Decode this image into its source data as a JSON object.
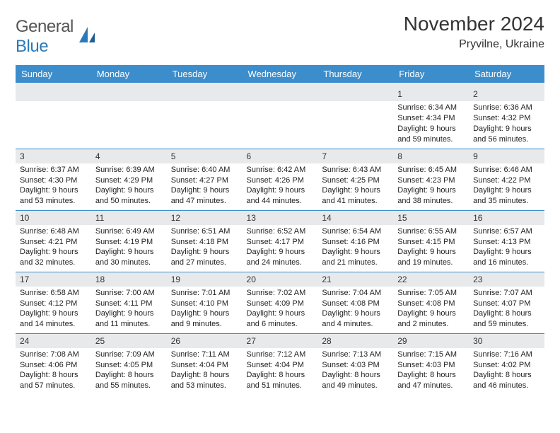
{
  "logo": {
    "word1": "General",
    "word2": "Blue"
  },
  "title": "November 2024",
  "location": "Pryvilne, Ukraine",
  "colors": {
    "header_bg": "#3c8dcc",
    "header_text": "#ffffff",
    "daynum_bg": "#e7e9eb",
    "border": "#3c8dcc",
    "logo_blue": "#2a7ab9",
    "body_text": "#222222"
  },
  "daysOfWeek": [
    "Sunday",
    "Monday",
    "Tuesday",
    "Wednesday",
    "Thursday",
    "Friday",
    "Saturday"
  ],
  "weeks": [
    [
      null,
      null,
      null,
      null,
      null,
      {
        "n": "1",
        "sr": "6:34 AM",
        "ss": "4:34 PM",
        "dl": "9 hours and 59 minutes."
      },
      {
        "n": "2",
        "sr": "6:36 AM",
        "ss": "4:32 PM",
        "dl": "9 hours and 56 minutes."
      }
    ],
    [
      {
        "n": "3",
        "sr": "6:37 AM",
        "ss": "4:30 PM",
        "dl": "9 hours and 53 minutes."
      },
      {
        "n": "4",
        "sr": "6:39 AM",
        "ss": "4:29 PM",
        "dl": "9 hours and 50 minutes."
      },
      {
        "n": "5",
        "sr": "6:40 AM",
        "ss": "4:27 PM",
        "dl": "9 hours and 47 minutes."
      },
      {
        "n": "6",
        "sr": "6:42 AM",
        "ss": "4:26 PM",
        "dl": "9 hours and 44 minutes."
      },
      {
        "n": "7",
        "sr": "6:43 AM",
        "ss": "4:25 PM",
        "dl": "9 hours and 41 minutes."
      },
      {
        "n": "8",
        "sr": "6:45 AM",
        "ss": "4:23 PM",
        "dl": "9 hours and 38 minutes."
      },
      {
        "n": "9",
        "sr": "6:46 AM",
        "ss": "4:22 PM",
        "dl": "9 hours and 35 minutes."
      }
    ],
    [
      {
        "n": "10",
        "sr": "6:48 AM",
        "ss": "4:21 PM",
        "dl": "9 hours and 32 minutes."
      },
      {
        "n": "11",
        "sr": "6:49 AM",
        "ss": "4:19 PM",
        "dl": "9 hours and 30 minutes."
      },
      {
        "n": "12",
        "sr": "6:51 AM",
        "ss": "4:18 PM",
        "dl": "9 hours and 27 minutes."
      },
      {
        "n": "13",
        "sr": "6:52 AM",
        "ss": "4:17 PM",
        "dl": "9 hours and 24 minutes."
      },
      {
        "n": "14",
        "sr": "6:54 AM",
        "ss": "4:16 PM",
        "dl": "9 hours and 21 minutes."
      },
      {
        "n": "15",
        "sr": "6:55 AM",
        "ss": "4:15 PM",
        "dl": "9 hours and 19 minutes."
      },
      {
        "n": "16",
        "sr": "6:57 AM",
        "ss": "4:13 PM",
        "dl": "9 hours and 16 minutes."
      }
    ],
    [
      {
        "n": "17",
        "sr": "6:58 AM",
        "ss": "4:12 PM",
        "dl": "9 hours and 14 minutes."
      },
      {
        "n": "18",
        "sr": "7:00 AM",
        "ss": "4:11 PM",
        "dl": "9 hours and 11 minutes."
      },
      {
        "n": "19",
        "sr": "7:01 AM",
        "ss": "4:10 PM",
        "dl": "9 hours and 9 minutes."
      },
      {
        "n": "20",
        "sr": "7:02 AM",
        "ss": "4:09 PM",
        "dl": "9 hours and 6 minutes."
      },
      {
        "n": "21",
        "sr": "7:04 AM",
        "ss": "4:08 PM",
        "dl": "9 hours and 4 minutes."
      },
      {
        "n": "22",
        "sr": "7:05 AM",
        "ss": "4:08 PM",
        "dl": "9 hours and 2 minutes."
      },
      {
        "n": "23",
        "sr": "7:07 AM",
        "ss": "4:07 PM",
        "dl": "8 hours and 59 minutes."
      }
    ],
    [
      {
        "n": "24",
        "sr": "7:08 AM",
        "ss": "4:06 PM",
        "dl": "8 hours and 57 minutes."
      },
      {
        "n": "25",
        "sr": "7:09 AM",
        "ss": "4:05 PM",
        "dl": "8 hours and 55 minutes."
      },
      {
        "n": "26",
        "sr": "7:11 AM",
        "ss": "4:04 PM",
        "dl": "8 hours and 53 minutes."
      },
      {
        "n": "27",
        "sr": "7:12 AM",
        "ss": "4:04 PM",
        "dl": "8 hours and 51 minutes."
      },
      {
        "n": "28",
        "sr": "7:13 AM",
        "ss": "4:03 PM",
        "dl": "8 hours and 49 minutes."
      },
      {
        "n": "29",
        "sr": "7:15 AM",
        "ss": "4:03 PM",
        "dl": "8 hours and 47 minutes."
      },
      {
        "n": "30",
        "sr": "7:16 AM",
        "ss": "4:02 PM",
        "dl": "8 hours and 46 minutes."
      }
    ]
  ],
  "labels": {
    "sunrise": "Sunrise: ",
    "sunset": "Sunset: ",
    "daylight": "Daylight: "
  }
}
